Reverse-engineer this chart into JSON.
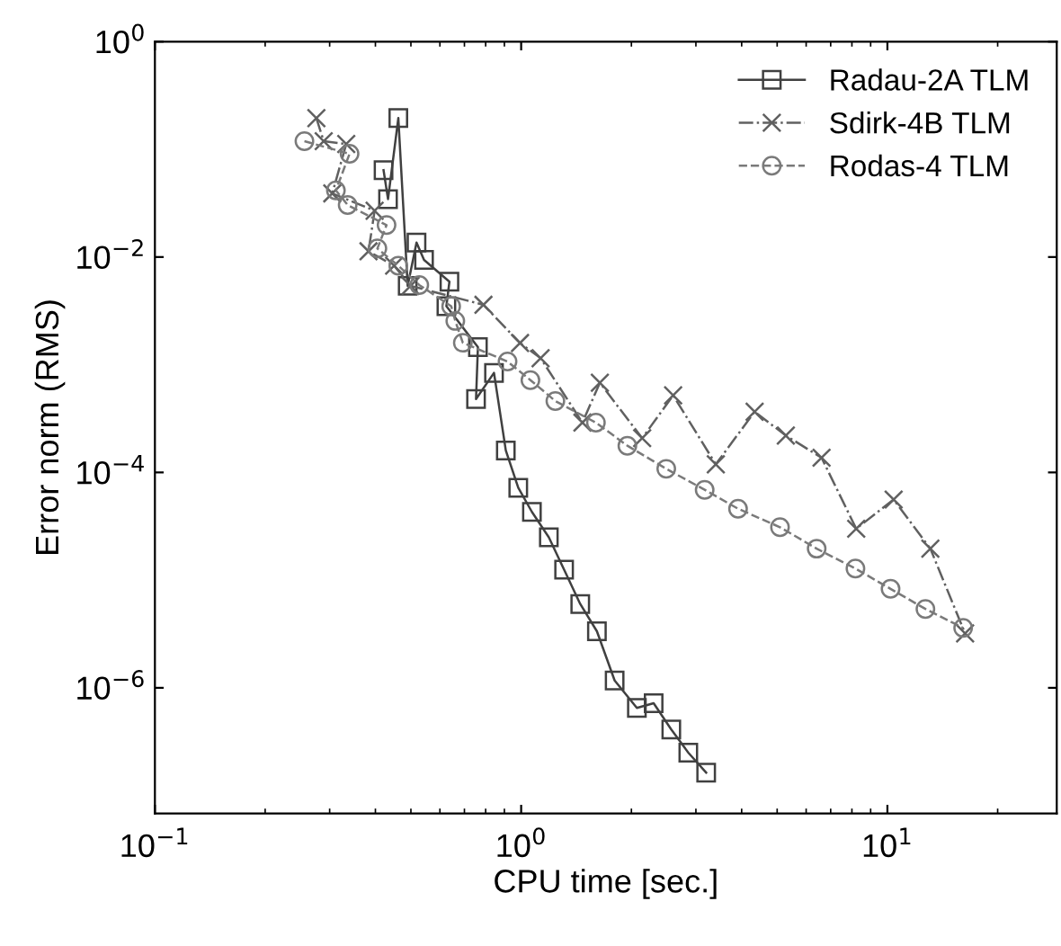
{
  "chart_data": {
    "type": "line",
    "xlabel": "CPU time [sec.]",
    "ylabel": "Error norm (RMS)",
    "log": "xy",
    "xlim": [
      0.1,
      29
    ],
    "ylim": [
      6.8e-08,
      1
    ],
    "xticks": [
      {
        "value": 0.1,
        "label": "10$^{−1}$"
      },
      {
        "value": 1,
        "label": "10$^{0}$"
      },
      {
        "value": 10,
        "label": "10$^{1}$"
      }
    ],
    "yticks": [
      {
        "value": 1e-06,
        "label": "10$^{−6}$"
      },
      {
        "value": 0.0001,
        "label": "10$^{−4}$"
      },
      {
        "value": 0.01,
        "label": "10$^{−2}$"
      },
      {
        "value": 1,
        "label": "10$^{0}$"
      }
    ],
    "grid": false,
    "legend": "top right",
    "series": [
      {
        "name": "Radau-2A TLM",
        "color": "#404040",
        "marker": "square",
        "line_style": "solid",
        "x": [
          0.421,
          0.433,
          0.462,
          0.49,
          0.518,
          0.543,
          0.637,
          0.625,
          0.762,
          0.753,
          0.843,
          0.908,
          0.982,
          1.07,
          1.19,
          1.31,
          1.45,
          1.61,
          1.8,
          2.07,
          2.3,
          2.57,
          2.86,
          3.2
        ],
        "values": [
          0.064,
          0.0345,
          0.195,
          0.0054,
          0.0136,
          0.0094,
          0.0059,
          0.0035,
          0.00146,
          0.00048,
          0.00084,
          0.00016,
          7.2e-05,
          4.3e-05,
          2.5e-05,
          1.25e-05,
          6e-06,
          3.35e-06,
          1.17e-06,
          6.5e-07,
          7.2e-07,
          4.1e-07,
          2.5e-07,
          1.63e-07
        ]
      },
      {
        "name": "Sdirk-4B TLM",
        "color": "#606060",
        "marker": "cross",
        "line_style": "dashdot",
        "x": [
          0.276,
          0.289,
          0.333,
          0.305,
          0.398,
          0.383,
          0.45,
          0.499,
          0.789,
          0.993,
          1.13,
          1.47,
          1.64,
          2.14,
          2.6,
          3.4,
          4.34,
          5.28,
          6.61,
          8.22,
          10.4,
          13.1,
          16.3
        ],
        "values": [
          0.195,
          0.119,
          0.112,
          0.039,
          0.0269,
          0.0113,
          0.0083,
          0.0054,
          0.0036,
          0.00159,
          0.00115,
          0.00029,
          0.00068,
          0.000208,
          0.00052,
          0.000119,
          0.000366,
          0.00022,
          0.000137,
          3e-05,
          5.6e-05,
          1.96e-05,
          3.2e-06
        ]
      },
      {
        "name": "Rodas-4 TLM",
        "color": "#7a7a7a",
        "marker": "circle",
        "line_style": "dashed",
        "x": [
          0.256,
          0.34,
          0.312,
          0.336,
          0.429,
          0.405,
          0.462,
          0.527,
          0.644,
          0.661,
          0.693,
          0.918,
          1.06,
          1.24,
          1.6,
          1.95,
          2.49,
          3.17,
          3.91,
          5.09,
          6.41,
          8.18,
          10.2,
          12.7,
          16.1
        ],
        "values": [
          0.119,
          0.0908,
          0.0416,
          0.0304,
          0.0198,
          0.012,
          0.0083,
          0.0055,
          0.0035,
          0.00255,
          0.0016,
          0.00107,
          0.00072,
          0.00046,
          0.00029,
          0.000177,
          0.000108,
          6.9e-05,
          4.6e-05,
          3.1e-05,
          1.96e-05,
          1.28e-05,
          8.3e-06,
          5.4e-06,
          3.6e-06
        ]
      }
    ]
  }
}
